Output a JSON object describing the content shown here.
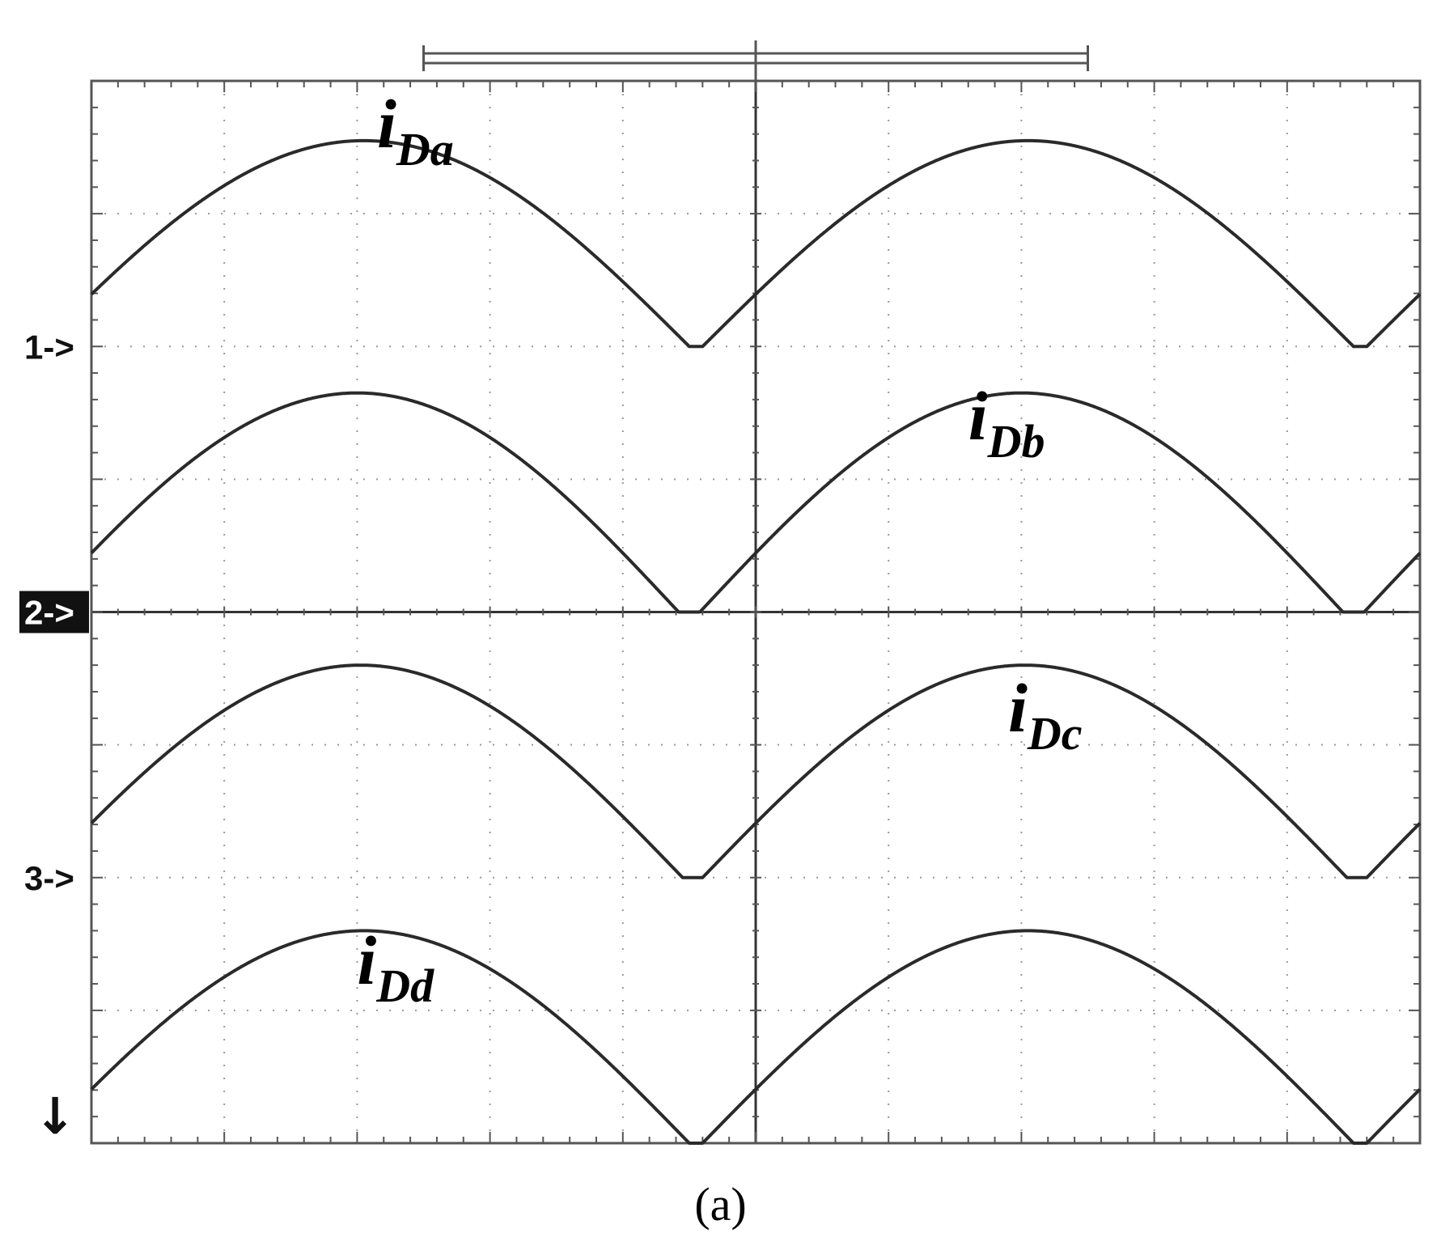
{
  "caption": "(a)",
  "chart_data": {
    "type": "line",
    "title": "",
    "xlabel": "",
    "ylabel": "",
    "x_divisions": 10,
    "y_divisions": 8,
    "xlim": [
      0,
      10
    ],
    "ylim": [
      0,
      8
    ],
    "grid": true,
    "channel_markers": [
      {
        "label": "1->",
        "level": 6,
        "highlighted": false
      },
      {
        "label": "2->",
        "level": 4,
        "highlighted": true
      },
      {
        "label": "3->",
        "level": 2,
        "highlighted": false
      }
    ],
    "bottom_marker": "↓",
    "series": [
      {
        "label_main": "i",
        "label_sub": "Da",
        "baseline": 6,
        "peak": 7.55,
        "period": 5,
        "conduction_start": 4.6,
        "conduction_end": 9.5,
        "label_x": 4.3,
        "label_y": 7.5
      },
      {
        "label_main": "i",
        "label_sub": "Db",
        "baseline": 4,
        "peak": 5.65,
        "period": 5,
        "conduction_start": -0.42,
        "conduction_end": 4.42,
        "label_x": 13.2,
        "label_y": 5.3
      },
      {
        "label_main": "i",
        "label_sub": "Dc",
        "baseline": 2,
        "peak": 3.6,
        "period": 5,
        "conduction_start": -0.4,
        "conduction_end": 4.45,
        "label_x": 13.8,
        "label_y": 3.1
      },
      {
        "label_main": "i",
        "label_sub": "Dd",
        "baseline": 0,
        "peak": 1.6,
        "period": 5,
        "conduction_start": 4.6,
        "conduction_end": 9.5,
        "label_x": 4.0,
        "label_y": 1.2
      }
    ]
  }
}
